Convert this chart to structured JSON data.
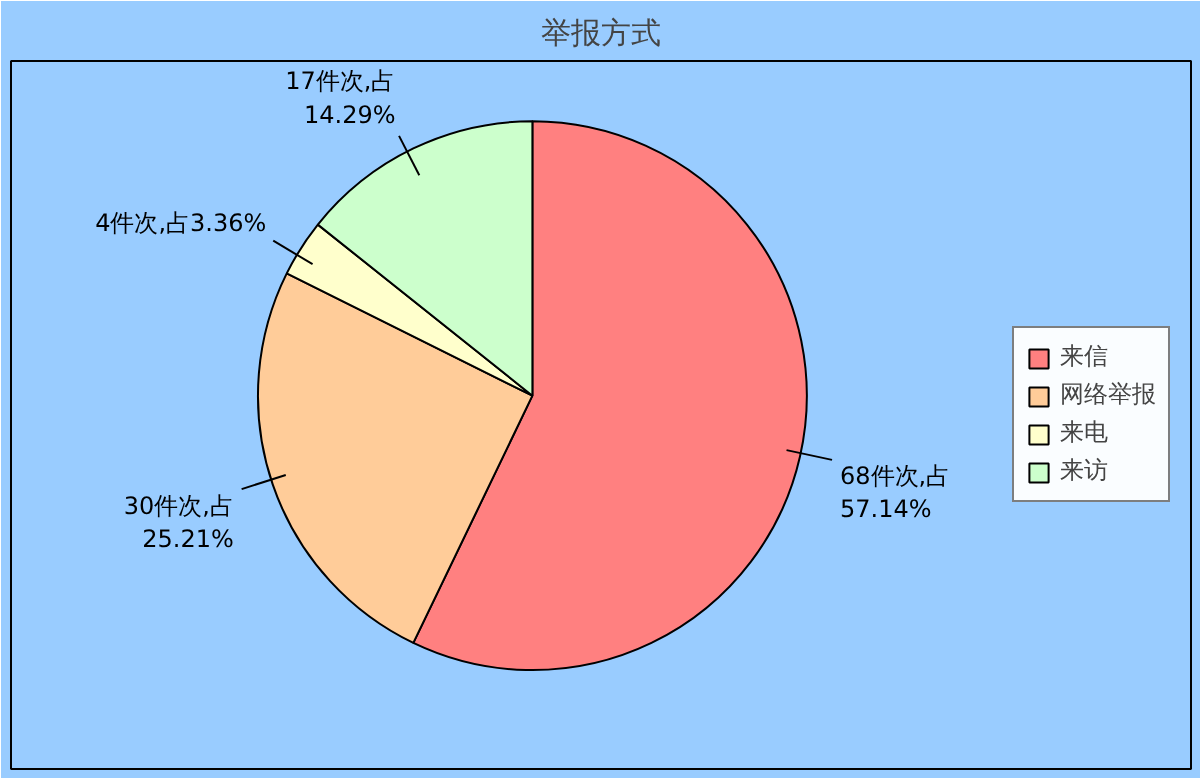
{
  "chart_data": {
    "type": "pie",
    "title": "举报方式",
    "categories": [
      "来信",
      "网络举报",
      "来电",
      "来访"
    ],
    "values": [
      68,
      30,
      4,
      17
    ],
    "colors": [
      "#ff8080",
      "#ffcc99",
      "#ffffcc",
      "#ccffcc"
    ],
    "value_labels": [
      "68件次,占\n57.14%",
      "30件次,占\n25.21%",
      "4件次,占3.36%",
      "17件次,占\n14.29%"
    ],
    "legend": "right"
  }
}
